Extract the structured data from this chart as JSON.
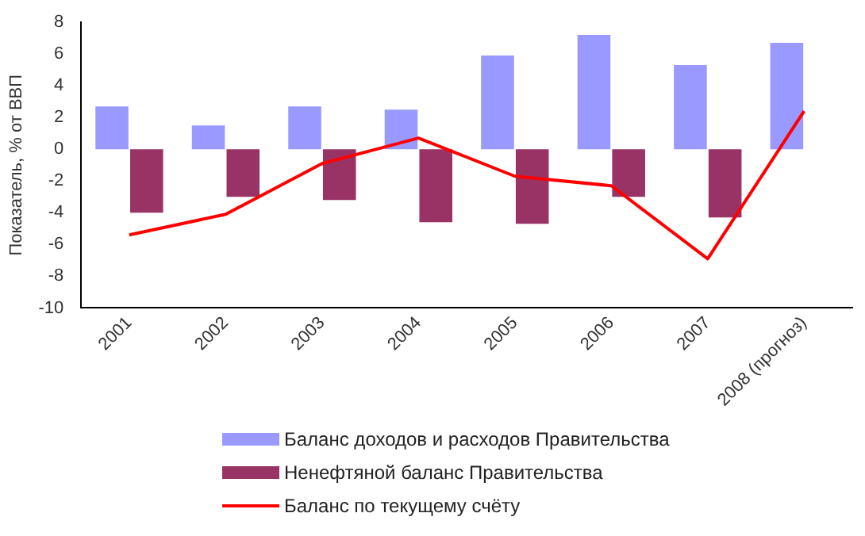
{
  "chart_data": {
    "type": "bar",
    "ylabel": "Показатель, % от ВВП",
    "categories": [
      "2001",
      "2002",
      "2003",
      "2004",
      "2005",
      "2006",
      "2007",
      "2008 (прогноз)"
    ],
    "series": [
      {
        "name": "Баланс доходов и расходов Правительства",
        "color": "#9999ff",
        "values": [
          2.7,
          1.5,
          2.7,
          2.5,
          5.9,
          7.2,
          5.3,
          6.7
        ]
      },
      {
        "name": "Ненефтяной баланс Правительства",
        "color": "#993366",
        "values": [
          -4.0,
          -3.0,
          -3.2,
          -4.6,
          -4.7,
          -3.0,
          -4.3,
          null
        ]
      },
      {
        "name": "Баланс по текущему счёту",
        "type": "line",
        "color": "#ff0000",
        "values": [
          -5.4,
          -4.1,
          -0.9,
          0.7,
          -1.7,
          -2.3,
          -6.9,
          2.4
        ]
      }
    ],
    "ylim": [
      -10,
      8
    ],
    "yticks": [
      -10,
      -8,
      -6,
      -4,
      -2,
      0,
      2,
      4,
      6,
      8
    ],
    "grid": false,
    "legend": "bottom",
    "marker": "none"
  }
}
